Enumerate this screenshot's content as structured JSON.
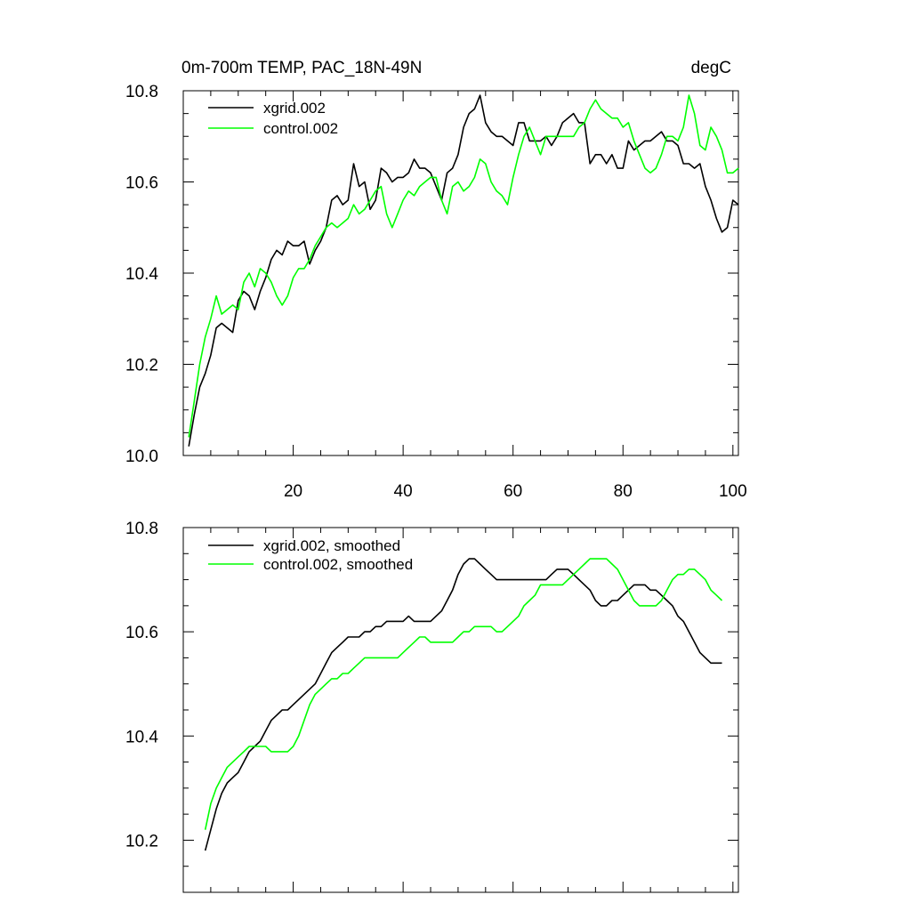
{
  "chart_data": [
    {
      "type": "line",
      "title": "0m-700m TEMP, PAC_18N-49N",
      "units": "degC",
      "xlabel": "",
      "ylabel": "",
      "xlim": [
        0,
        101
      ],
      "ylim": [
        10.0,
        10.8
      ],
      "xticks": [
        20,
        40,
        60,
        80,
        100
      ],
      "xtick_labels": [
        "20",
        "40",
        "60",
        "80",
        "100"
      ],
      "yticks": [
        10.0,
        10.2,
        10.4,
        10.6,
        10.8
      ],
      "ytick_labels": [
        "10.0",
        "10.2",
        "10.4",
        "10.6",
        "10.8"
      ],
      "legend_position": "top-left",
      "series": [
        {
          "name": "xgrid.002",
          "color": "#000000",
          "x": [
            1,
            2,
            3,
            4,
            5,
            6,
            7,
            8,
            9,
            10,
            11,
            12,
            13,
            14,
            15,
            16,
            17,
            18,
            19,
            20,
            21,
            22,
            23,
            24,
            25,
            26,
            27,
            28,
            29,
            30,
            31,
            32,
            33,
            34,
            35,
            36,
            37,
            38,
            39,
            40,
            41,
            42,
            43,
            44,
            45,
            46,
            47,
            48,
            49,
            50,
            51,
            52,
            53,
            54,
            55,
            56,
            57,
            58,
            59,
            60,
            61,
            62,
            63,
            64,
            65,
            66,
            67,
            68,
            69,
            70,
            71,
            72,
            73,
            74,
            75,
            76,
            77,
            78,
            79,
            80,
            81,
            82,
            83,
            84,
            85,
            86,
            87,
            88,
            89,
            90,
            91,
            92,
            93,
            94,
            95,
            96,
            97,
            98,
            99,
            100,
            101
          ],
          "values": [
            10.02,
            10.09,
            10.15,
            10.18,
            10.22,
            10.28,
            10.29,
            10.28,
            10.27,
            10.34,
            10.36,
            10.35,
            10.32,
            10.36,
            10.39,
            10.43,
            10.45,
            10.44,
            10.47,
            10.46,
            10.46,
            10.47,
            10.42,
            10.45,
            10.47,
            10.5,
            10.56,
            10.57,
            10.55,
            10.56,
            10.64,
            10.59,
            10.6,
            10.54,
            10.56,
            10.63,
            10.62,
            10.6,
            10.61,
            10.61,
            10.62,
            10.65,
            10.63,
            10.63,
            10.62,
            10.59,
            10.56,
            10.62,
            10.63,
            10.66,
            10.72,
            10.75,
            10.76,
            10.79,
            10.73,
            10.71,
            10.7,
            10.7,
            10.69,
            10.68,
            10.73,
            10.73,
            10.69,
            10.69,
            10.69,
            10.7,
            10.68,
            10.7,
            10.73,
            10.74,
            10.75,
            10.73,
            10.73,
            10.64,
            10.66,
            10.66,
            10.64,
            10.66,
            10.63,
            10.63,
            10.69,
            10.67,
            10.68,
            10.69,
            10.69,
            10.7,
            10.71,
            10.69,
            10.69,
            10.68,
            10.64,
            10.64,
            10.63,
            10.64,
            10.59,
            10.56,
            10.52,
            10.49,
            10.5,
            10.56,
            10.55
          ]
        },
        {
          "name": "control.002",
          "color": "#00ff00",
          "x": [
            1,
            2,
            3,
            4,
            5,
            6,
            7,
            8,
            9,
            10,
            11,
            12,
            13,
            14,
            15,
            16,
            17,
            18,
            19,
            20,
            21,
            22,
            23,
            24,
            25,
            26,
            27,
            28,
            29,
            30,
            31,
            32,
            33,
            34,
            35,
            36,
            37,
            38,
            39,
            40,
            41,
            42,
            43,
            44,
            45,
            46,
            47,
            48,
            49,
            50,
            51,
            52,
            53,
            54,
            55,
            56,
            57,
            58,
            59,
            60,
            61,
            62,
            63,
            64,
            65,
            66,
            67,
            68,
            69,
            70,
            71,
            72,
            73,
            74,
            75,
            76,
            77,
            78,
            79,
            80,
            81,
            82,
            83,
            84,
            85,
            86,
            87,
            88,
            89,
            90,
            91,
            92,
            93,
            94,
            95,
            96,
            97,
            98,
            99,
            100,
            101
          ],
          "values": [
            10.04,
            10.12,
            10.2,
            10.26,
            10.3,
            10.35,
            10.31,
            10.32,
            10.33,
            10.32,
            10.38,
            10.4,
            10.37,
            10.41,
            10.4,
            10.38,
            10.35,
            10.33,
            10.35,
            10.39,
            10.41,
            10.41,
            10.43,
            10.46,
            10.48,
            10.5,
            10.51,
            10.5,
            10.51,
            10.52,
            10.55,
            10.53,
            10.54,
            10.56,
            10.58,
            10.59,
            10.53,
            10.5,
            10.53,
            10.56,
            10.58,
            10.57,
            10.59,
            10.6,
            10.61,
            10.61,
            10.56,
            10.53,
            10.59,
            10.6,
            10.58,
            10.59,
            10.61,
            10.65,
            10.64,
            10.6,
            10.58,
            10.57,
            10.55,
            10.61,
            10.66,
            10.7,
            10.72,
            10.69,
            10.66,
            10.7,
            10.7,
            10.7,
            10.7,
            10.7,
            10.7,
            10.72,
            10.73,
            10.76,
            10.78,
            10.76,
            10.75,
            10.74,
            10.74,
            10.72,
            10.73,
            10.69,
            10.66,
            10.63,
            10.62,
            10.63,
            10.66,
            10.7,
            10.7,
            10.69,
            10.72,
            10.79,
            10.75,
            10.68,
            10.67,
            10.72,
            10.7,
            10.67,
            10.62,
            10.62,
            10.63
          ]
        }
      ]
    },
    {
      "type": "line",
      "title": "",
      "xlabel": "",
      "ylabel": "",
      "xlim": [
        0,
        101
      ],
      "ylim": [
        10.1,
        10.8
      ],
      "xticks": [
        20,
        40,
        60,
        80,
        100
      ],
      "xtick_labels": [],
      "yticks": [
        10.2,
        10.4,
        10.6,
        10.8
      ],
      "ytick_labels": [
        "10.2",
        "10.4",
        "10.6",
        "10.8"
      ],
      "legend_position": "top-left",
      "series": [
        {
          "name": "xgrid.002, smoothed",
          "color": "#000000",
          "x": [
            4,
            5,
            6,
            7,
            8,
            9,
            10,
            11,
            12,
            13,
            14,
            15,
            16,
            17,
            18,
            19,
            20,
            21,
            22,
            23,
            24,
            25,
            26,
            27,
            28,
            29,
            30,
            31,
            32,
            33,
            34,
            35,
            36,
            37,
            38,
            39,
            40,
            41,
            42,
            43,
            44,
            45,
            46,
            47,
            48,
            49,
            50,
            51,
            52,
            53,
            54,
            55,
            56,
            57,
            58,
            59,
            60,
            61,
            62,
            63,
            64,
            65,
            66,
            67,
            68,
            69,
            70,
            71,
            72,
            73,
            74,
            75,
            76,
            77,
            78,
            79,
            80,
            81,
            82,
            83,
            84,
            85,
            86,
            87,
            88,
            89,
            90,
            91,
            92,
            93,
            94,
            95,
            96,
            97,
            98
          ],
          "values": [
            10.18,
            10.22,
            10.26,
            10.29,
            10.31,
            10.32,
            10.33,
            10.35,
            10.37,
            10.38,
            10.39,
            10.41,
            10.43,
            10.44,
            10.45,
            10.45,
            10.46,
            10.47,
            10.48,
            10.49,
            10.5,
            10.52,
            10.54,
            10.56,
            10.57,
            10.58,
            10.59,
            10.59,
            10.59,
            10.6,
            10.6,
            10.61,
            10.61,
            10.62,
            10.62,
            10.62,
            10.62,
            10.63,
            10.62,
            10.62,
            10.62,
            10.62,
            10.63,
            10.64,
            10.66,
            10.68,
            10.71,
            10.73,
            10.74,
            10.74,
            10.73,
            10.72,
            10.71,
            10.7,
            10.7,
            10.7,
            10.7,
            10.7,
            10.7,
            10.7,
            10.7,
            10.7,
            10.7,
            10.71,
            10.72,
            10.72,
            10.72,
            10.71,
            10.7,
            10.69,
            10.68,
            10.66,
            10.65,
            10.65,
            10.66,
            10.66,
            10.67,
            10.68,
            10.69,
            10.69,
            10.69,
            10.68,
            10.68,
            10.67,
            10.66,
            10.65,
            10.63,
            10.62,
            10.6,
            10.58,
            10.56,
            10.55,
            10.54,
            10.54,
            10.54
          ]
        },
        {
          "name": "control.002, smoothed",
          "color": "#00ff00",
          "x": [
            4,
            5,
            6,
            7,
            8,
            9,
            10,
            11,
            12,
            13,
            14,
            15,
            16,
            17,
            18,
            19,
            20,
            21,
            22,
            23,
            24,
            25,
            26,
            27,
            28,
            29,
            30,
            31,
            32,
            33,
            34,
            35,
            36,
            37,
            38,
            39,
            40,
            41,
            42,
            43,
            44,
            45,
            46,
            47,
            48,
            49,
            50,
            51,
            52,
            53,
            54,
            55,
            56,
            57,
            58,
            59,
            60,
            61,
            62,
            63,
            64,
            65,
            66,
            67,
            68,
            69,
            70,
            71,
            72,
            73,
            74,
            75,
            76,
            77,
            78,
            79,
            80,
            81,
            82,
            83,
            84,
            85,
            86,
            87,
            88,
            89,
            90,
            91,
            92,
            93,
            94,
            95,
            96,
            97,
            98
          ],
          "values": [
            10.22,
            10.27,
            10.3,
            10.32,
            10.34,
            10.35,
            10.36,
            10.37,
            10.38,
            10.38,
            10.38,
            10.38,
            10.37,
            10.37,
            10.37,
            10.37,
            10.38,
            10.4,
            10.43,
            10.46,
            10.48,
            10.49,
            10.5,
            10.51,
            10.51,
            10.52,
            10.52,
            10.53,
            10.54,
            10.55,
            10.55,
            10.55,
            10.55,
            10.55,
            10.55,
            10.55,
            10.56,
            10.57,
            10.58,
            10.59,
            10.59,
            10.58,
            10.58,
            10.58,
            10.58,
            10.58,
            10.59,
            10.6,
            10.6,
            10.61,
            10.61,
            10.61,
            10.61,
            10.6,
            10.6,
            10.61,
            10.62,
            10.63,
            10.65,
            10.66,
            10.67,
            10.69,
            10.69,
            10.69,
            10.69,
            10.69,
            10.7,
            10.71,
            10.72,
            10.73,
            10.74,
            10.74,
            10.74,
            10.74,
            10.73,
            10.72,
            10.7,
            10.68,
            10.66,
            10.65,
            10.65,
            10.65,
            10.65,
            10.66,
            10.68,
            10.7,
            10.71,
            10.71,
            10.72,
            10.72,
            10.71,
            10.7,
            10.68,
            10.67,
            10.66
          ]
        }
      ]
    }
  ]
}
